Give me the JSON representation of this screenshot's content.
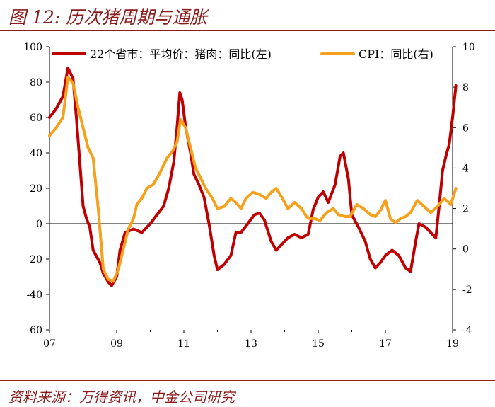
{
  "figure": {
    "title": "图 12: 历次猪周期与通胀",
    "source": "资料来源：万得资讯，中金公司研究"
  },
  "chart_data": {
    "type": "line",
    "x": [
      "07",
      "09",
      "11",
      "13",
      "15",
      "17",
      "19"
    ],
    "x_tick_labels": [
      "07",
      "09",
      "11",
      "13",
      "15",
      "17",
      "19"
    ],
    "y_left_ticks": [
      100,
      80,
      60,
      40,
      20,
      0,
      -20,
      -40,
      -60
    ],
    "y_right_ticks": [
      10,
      8,
      6,
      4,
      2,
      0,
      -2,
      -4
    ],
    "ylim_left": [
      -60,
      100
    ],
    "ylim_right": [
      -4,
      10
    ],
    "xlim": [
      2007,
      2019
    ],
    "grid": false,
    "legend_position": "top",
    "series": [
      {
        "name": "22个省市：平均价：猪肉：同比(左)",
        "axis": "left",
        "color": "#c00000",
        "data": [
          [
            2007.0,
            60
          ],
          [
            2007.2,
            65
          ],
          [
            2007.4,
            72
          ],
          [
            2007.55,
            88
          ],
          [
            2007.7,
            82
          ],
          [
            2007.8,
            60
          ],
          [
            2007.9,
            35
          ],
          [
            2008.0,
            10
          ],
          [
            2008.1,
            3
          ],
          [
            2008.2,
            -2
          ],
          [
            2008.3,
            -15
          ],
          [
            2008.5,
            -22
          ],
          [
            2008.6,
            -28
          ],
          [
            2008.75,
            -33
          ],
          [
            2008.85,
            -35
          ],
          [
            2009.0,
            -30
          ],
          [
            2009.1,
            -15
          ],
          [
            2009.25,
            -5
          ],
          [
            2009.5,
            -3
          ],
          [
            2009.75,
            -5
          ],
          [
            2010.0,
            0
          ],
          [
            2010.2,
            5
          ],
          [
            2010.4,
            10
          ],
          [
            2010.55,
            20
          ],
          [
            2010.7,
            35
          ],
          [
            2010.8,
            55
          ],
          [
            2010.88,
            74
          ],
          [
            2010.95,
            70
          ],
          [
            2011.05,
            55
          ],
          [
            2011.2,
            40
          ],
          [
            2011.3,
            28
          ],
          [
            2011.45,
            22
          ],
          [
            2011.6,
            15
          ],
          [
            2011.75,
            0
          ],
          [
            2011.9,
            -18
          ],
          [
            2012.0,
            -26
          ],
          [
            2012.2,
            -23
          ],
          [
            2012.4,
            -18
          ],
          [
            2012.55,
            -5
          ],
          [
            2012.7,
            -5
          ],
          [
            2012.9,
            0
          ],
          [
            2013.1,
            5
          ],
          [
            2013.25,
            6
          ],
          [
            2013.4,
            2
          ],
          [
            2013.6,
            -10
          ],
          [
            2013.75,
            -15
          ],
          [
            2013.9,
            -12
          ],
          [
            2014.1,
            -8
          ],
          [
            2014.3,
            -6
          ],
          [
            2014.5,
            -8
          ],
          [
            2014.7,
            -6
          ],
          [
            2014.85,
            8
          ],
          [
            2015.0,
            15
          ],
          [
            2015.15,
            18
          ],
          [
            2015.3,
            12
          ],
          [
            2015.5,
            22
          ],
          [
            2015.65,
            38
          ],
          [
            2015.75,
            40
          ],
          [
            2015.9,
            25
          ],
          [
            2016.0,
            5
          ],
          [
            2016.2,
            -2
          ],
          [
            2016.4,
            -10
          ],
          [
            2016.55,
            -20
          ],
          [
            2016.7,
            -25
          ],
          [
            2016.85,
            -22
          ],
          [
            2017.0,
            -18
          ],
          [
            2017.2,
            -15
          ],
          [
            2017.4,
            -18
          ],
          [
            2017.6,
            -25
          ],
          [
            2017.75,
            -27
          ],
          [
            2017.9,
            -10
          ],
          [
            2018.0,
            0
          ],
          [
            2018.2,
            -2
          ],
          [
            2018.35,
            -5
          ],
          [
            2018.5,
            -8
          ],
          [
            2018.6,
            10
          ],
          [
            2018.7,
            30
          ],
          [
            2018.8,
            38
          ],
          [
            2018.9,
            45
          ],
          [
            2019.0,
            60
          ],
          [
            2019.1,
            78
          ]
        ]
      },
      {
        "name": "CPI：同比(右)",
        "axis": "right",
        "color": "#f5a11c",
        "data": [
          [
            2007.0,
            5.6
          ],
          [
            2007.2,
            6.0
          ],
          [
            2007.4,
            6.5
          ],
          [
            2007.55,
            8.5
          ],
          [
            2007.7,
            8.2
          ],
          [
            2007.85,
            7.0
          ],
          [
            2008.0,
            6.0
          ],
          [
            2008.15,
            5.0
          ],
          [
            2008.3,
            4.5
          ],
          [
            2008.45,
            2.0
          ],
          [
            2008.6,
            -1.0
          ],
          [
            2008.75,
            -1.5
          ],
          [
            2008.9,
            -1.6
          ],
          [
            2009.05,
            -1.0
          ],
          [
            2009.2,
            0.0
          ],
          [
            2009.35,
            1.0
          ],
          [
            2009.5,
            1.5
          ],
          [
            2009.6,
            2.2
          ],
          [
            2009.75,
            2.5
          ],
          [
            2009.9,
            3.0
          ],
          [
            2010.1,
            3.2
          ],
          [
            2010.3,
            3.8
          ],
          [
            2010.5,
            4.5
          ],
          [
            2010.65,
            4.8
          ],
          [
            2010.8,
            5.3
          ],
          [
            2010.9,
            6.4
          ],
          [
            2011.05,
            6.0
          ],
          [
            2011.2,
            5.0
          ],
          [
            2011.35,
            4.0
          ],
          [
            2011.5,
            3.5
          ],
          [
            2011.65,
            3.0
          ],
          [
            2011.85,
            2.5
          ],
          [
            2012.0,
            2.0
          ],
          [
            2012.2,
            2.1
          ],
          [
            2012.4,
            2.5
          ],
          [
            2012.55,
            2.3
          ],
          [
            2012.7,
            2.0
          ],
          [
            2012.85,
            2.5
          ],
          [
            2013.05,
            2.8
          ],
          [
            2013.25,
            2.7
          ],
          [
            2013.45,
            2.5
          ],
          [
            2013.6,
            2.8
          ],
          [
            2013.75,
            3.0
          ],
          [
            2013.9,
            2.6
          ],
          [
            2014.1,
            2.0
          ],
          [
            2014.3,
            2.3
          ],
          [
            2014.5,
            2.0
          ],
          [
            2014.65,
            1.6
          ],
          [
            2014.75,
            1.5
          ],
          [
            2014.9,
            1.5
          ],
          [
            2015.05,
            1.4
          ],
          [
            2015.25,
            1.8
          ],
          [
            2015.45,
            2.0
          ],
          [
            2015.6,
            1.7
          ],
          [
            2015.8,
            1.6
          ],
          [
            2015.95,
            1.6
          ],
          [
            2016.15,
            2.2
          ],
          [
            2016.35,
            2.0
          ],
          [
            2016.55,
            1.7
          ],
          [
            2016.7,
            1.6
          ],
          [
            2016.85,
            1.9
          ],
          [
            2017.0,
            2.4
          ],
          [
            2017.15,
            1.5
          ],
          [
            2017.3,
            1.3
          ],
          [
            2017.45,
            1.5
          ],
          [
            2017.6,
            1.6
          ],
          [
            2017.75,
            1.8
          ],
          [
            2017.95,
            2.4
          ],
          [
            2018.15,
            2.1
          ],
          [
            2018.35,
            1.8
          ],
          [
            2018.55,
            2.1
          ],
          [
            2018.75,
            2.5
          ],
          [
            2018.95,
            2.2
          ],
          [
            2019.1,
            3.0
          ]
        ]
      }
    ]
  }
}
